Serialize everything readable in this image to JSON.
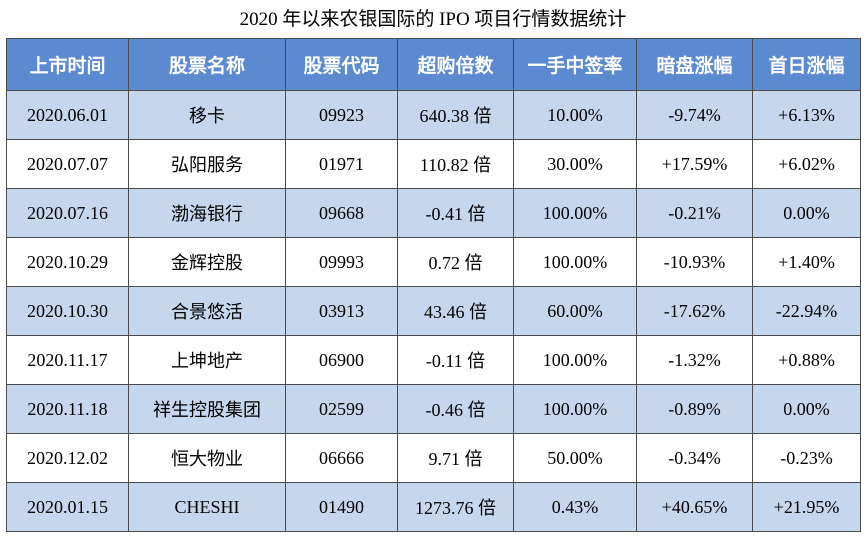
{
  "title": "2020 年以来农银国际的 IPO 项目行情数据统计",
  "table": {
    "header": [
      "上市时间",
      "股票名称",
      "股票代码",
      "超购倍数",
      "一手中签率",
      "暗盘涨幅",
      "首日涨幅"
    ],
    "rows": [
      [
        "2020.06.01",
        "移卡",
        "09923",
        "640.38 倍",
        "10.00%",
        "-9.74%",
        "+6.13%"
      ],
      [
        "2020.07.07",
        "弘阳服务",
        "01971",
        "110.82 倍",
        "30.00%",
        "+17.59%",
        "+6.02%"
      ],
      [
        "2020.07.16",
        "渤海银行",
        "09668",
        "-0.41 倍",
        "100.00%",
        "-0.21%",
        "0.00%"
      ],
      [
        "2020.10.29",
        "金辉控股",
        "09993",
        "0.72 倍",
        "100.00%",
        "-10.93%",
        "+1.40%"
      ],
      [
        "2020.10.30",
        "合景悠活",
        "03913",
        "43.46 倍",
        "60.00%",
        "-17.62%",
        "-22.94%"
      ],
      [
        "2020.11.17",
        "上坤地产",
        "06900",
        "-0.11 倍",
        "100.00%",
        "-1.32%",
        "+0.88%"
      ],
      [
        "2020.11.18",
        "祥生控股集团",
        "02599",
        "-0.46 倍",
        "100.00%",
        "-0.89%",
        "0.00%"
      ],
      [
        "2020.12.02",
        "恒大物业",
        "06666",
        "9.71 倍",
        "50.00%",
        "-0.34%",
        "-0.23%"
      ],
      [
        "2020.01.15",
        "CHESHI",
        "01490",
        "1273.76 倍",
        "0.43%",
        "+40.65%",
        "+21.95%"
      ]
    ]
  }
}
